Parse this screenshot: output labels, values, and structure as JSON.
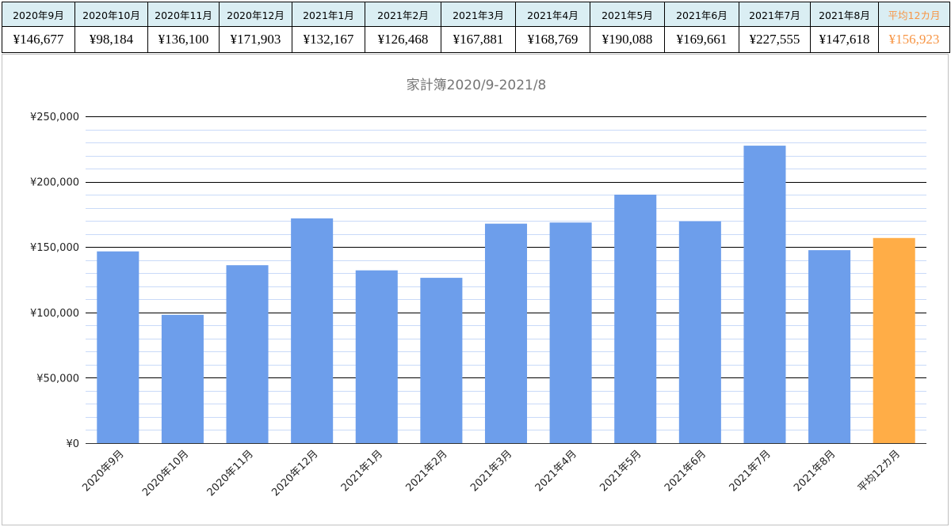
{
  "table": {
    "headers": [
      "2020年9月",
      "2020年10月",
      "2020年11月",
      "2020年12月",
      "2021年1月",
      "2021年2月",
      "2021年3月",
      "2021年4月",
      "2021年5月",
      "2021年6月",
      "2021年7月",
      "2021年8月",
      "平均12カ月"
    ],
    "values": [
      "¥146,677",
      "¥98,184",
      "¥136,100",
      "¥171,903",
      "¥132,167",
      "¥126,468",
      "¥167,881",
      "¥168,769",
      "¥190,088",
      "¥169,661",
      "¥227,555",
      "¥147,618",
      "¥156,923"
    ],
    "average_color": "#f79646",
    "header_bg": "#daeef3"
  },
  "chart_data": {
    "type": "bar",
    "title": "家計簿2020/9-2021/8",
    "xlabel": "",
    "ylabel": "",
    "categories": [
      "2020年9月",
      "2020年10月",
      "2020年11月",
      "2020年12月",
      "2021年1月",
      "2021年2月",
      "2021年3月",
      "2021年4月",
      "2021年5月",
      "2021年6月",
      "2021年7月",
      "2021年8月",
      "平均12カ月"
    ],
    "values": [
      146677,
      98184,
      136100,
      171903,
      132167,
      126468,
      167881,
      168769,
      190088,
      169661,
      227555,
      147618,
      156923
    ],
    "ylim": [
      0,
      250000
    ],
    "yticks": [
      0,
      50000,
      100000,
      150000,
      200000,
      250000
    ],
    "ytick_labels": [
      "¥0",
      "¥50,000",
      "¥100,000",
      "¥150,000",
      "¥200,000",
      "¥250,000"
    ],
    "minor_gridlines_per_major": 5,
    "grid": true,
    "legend": "none",
    "colors": {
      "bar": "#6d9eeb",
      "highlight_bar": "#ffad47",
      "major_grid": "#000000",
      "minor_grid": "#c9daf8",
      "title": "#757575",
      "tick_text": "#222222"
    }
  }
}
